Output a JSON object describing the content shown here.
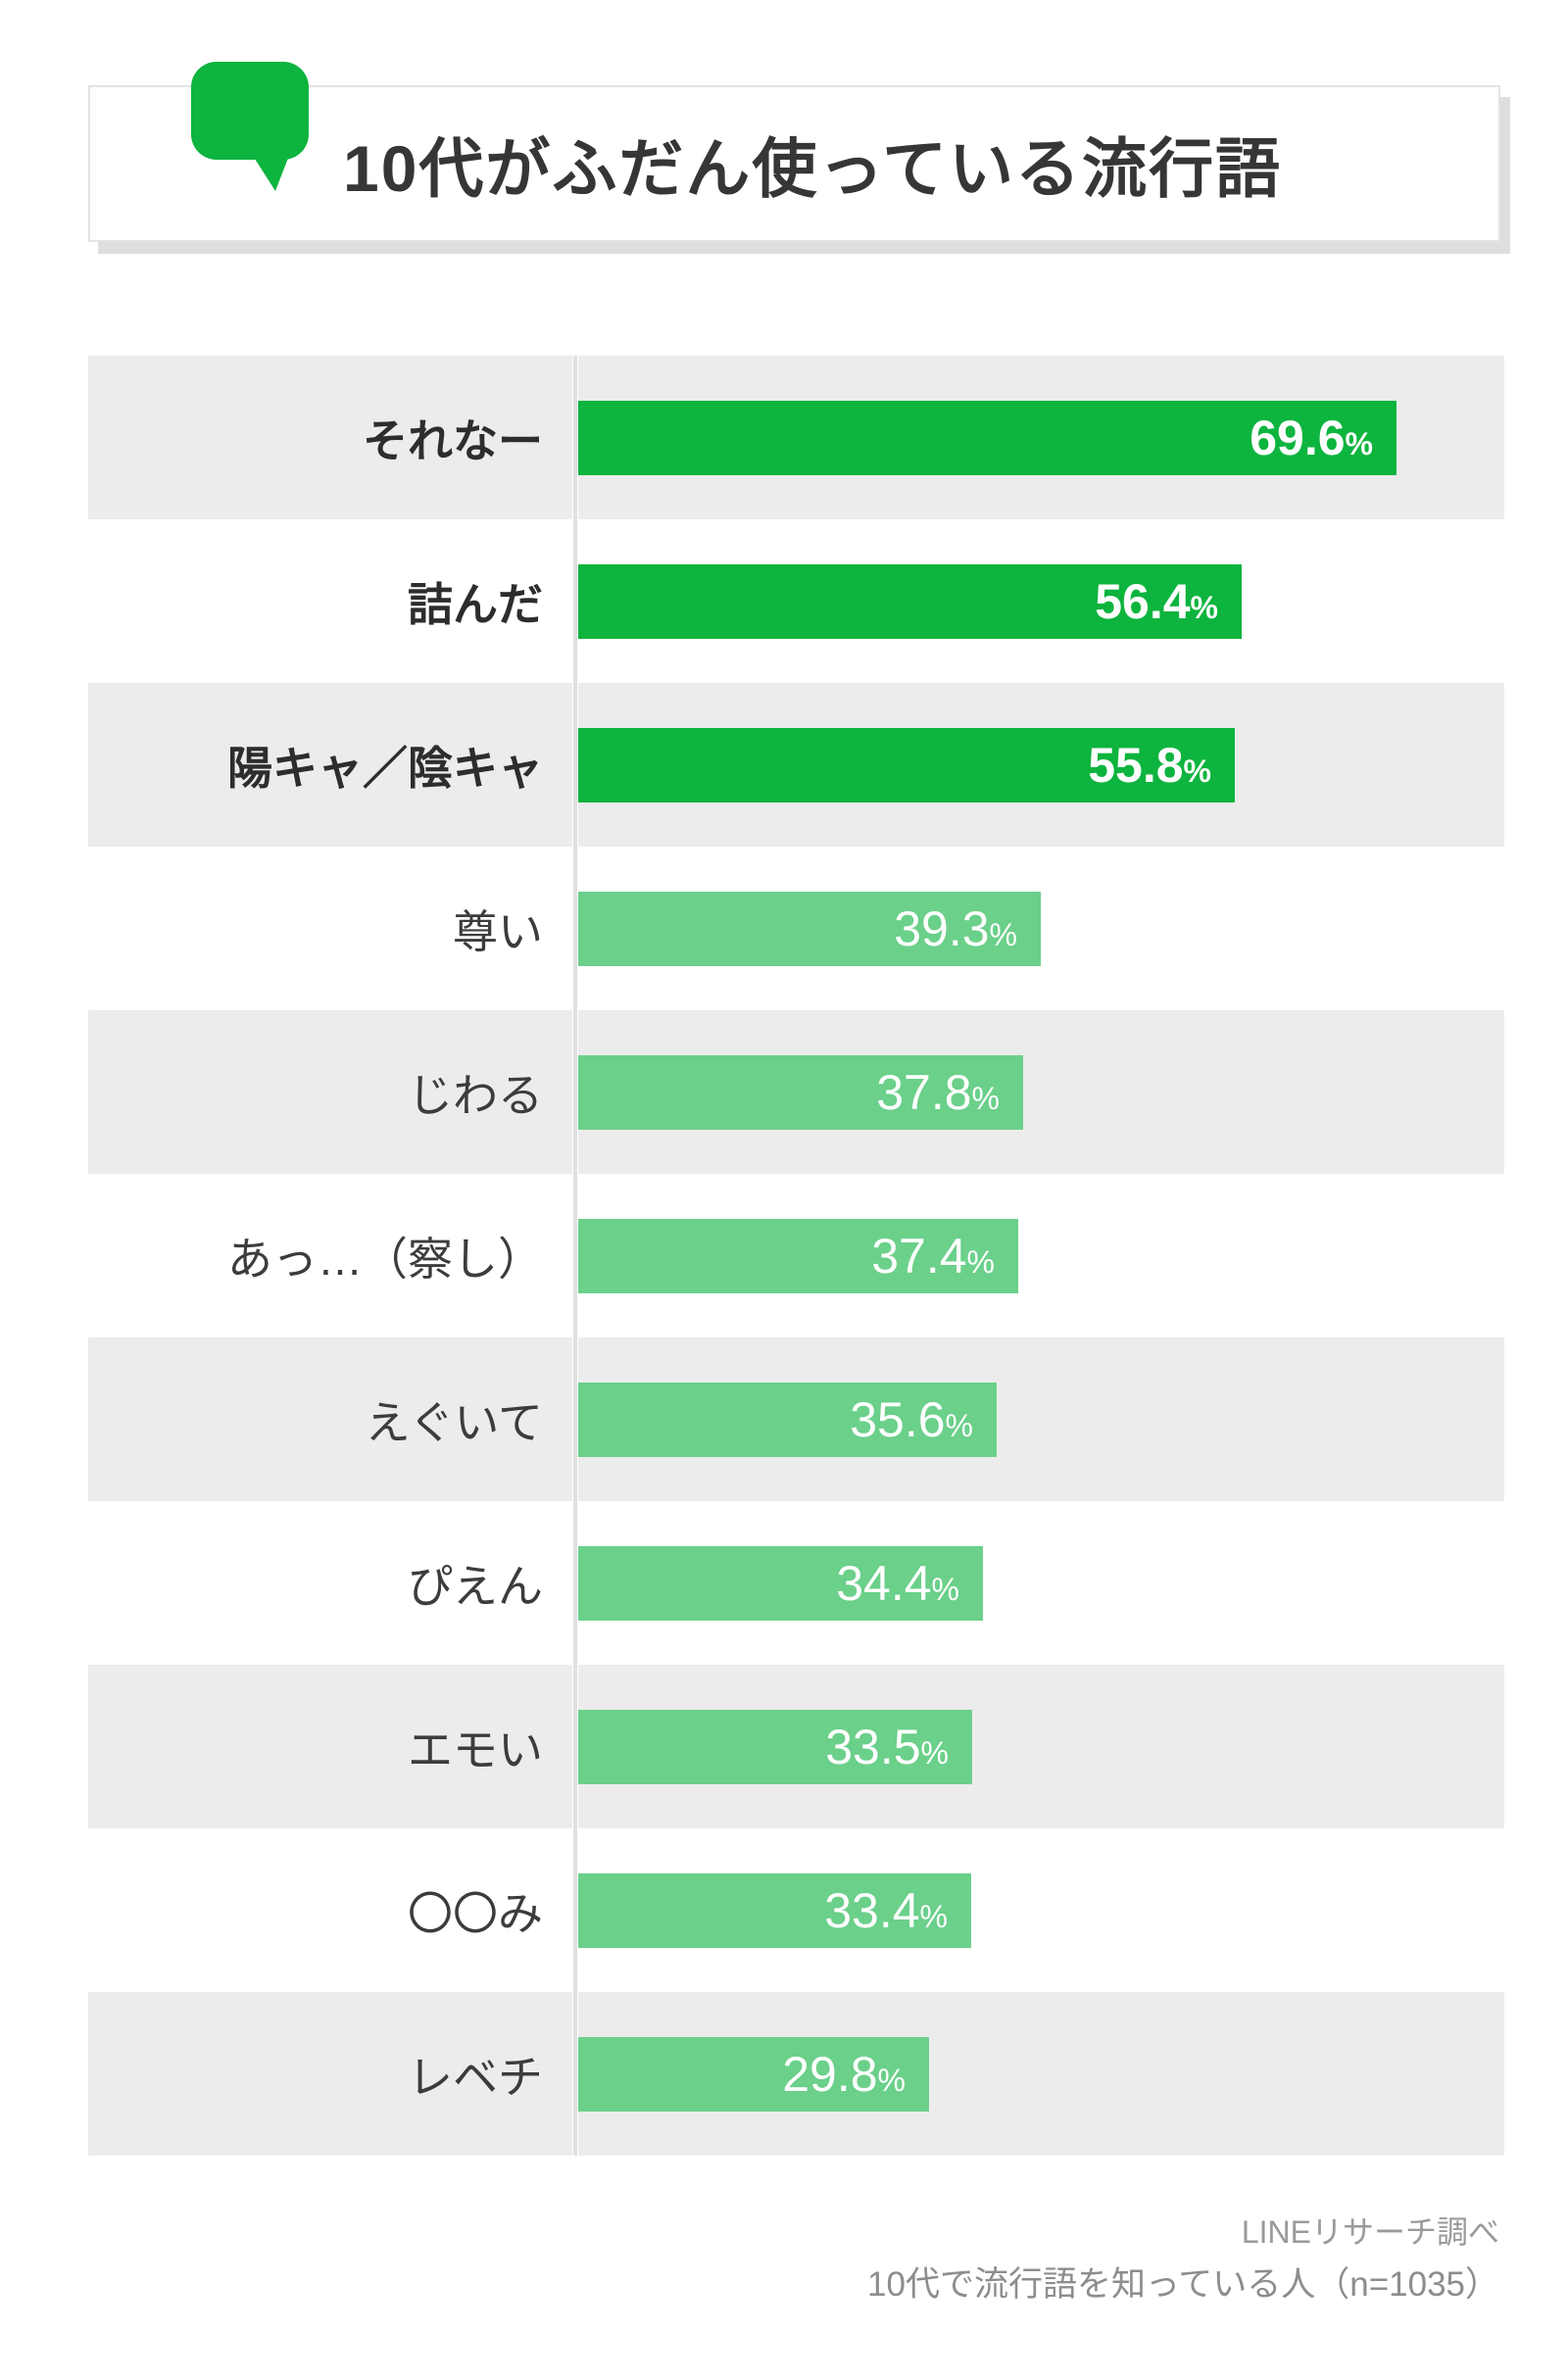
{
  "title": {
    "text": "10代がふだん使っている流行語",
    "icon": "speech-bubble"
  },
  "chart_data": {
    "type": "bar",
    "orientation": "horizontal",
    "title": "10代がふだん使っている流行語",
    "unit": "%",
    "categories": [
      "それなー",
      "詰んだ",
      "陽キャ／陰キャ",
      "尊い",
      "じわる",
      "あっ…（察し）",
      "えぐいて",
      "ぴえん",
      "エモい",
      "〇〇み",
      "レベチ"
    ],
    "values": [
      69.6,
      56.4,
      55.8,
      39.3,
      37.8,
      37.4,
      35.6,
      34.4,
      33.5,
      33.4,
      29.8
    ],
    "emphasized": [
      true,
      true,
      true,
      false,
      false,
      false,
      false,
      false,
      false,
      false,
      false
    ],
    "axis_max": 78.75,
    "grid": false,
    "legend": false,
    "colors": {
      "emphasis_bar": "#0db43e",
      "normal_bar": "#6bd08a",
      "row_alt_background": "#ececec",
      "axis_line": "#e0e0e0",
      "value_text": "#ffffff"
    }
  },
  "footer": {
    "source": "LINEリサーチ調べ",
    "sample_note": "10代で流行語を知っている人（n=1035）"
  }
}
